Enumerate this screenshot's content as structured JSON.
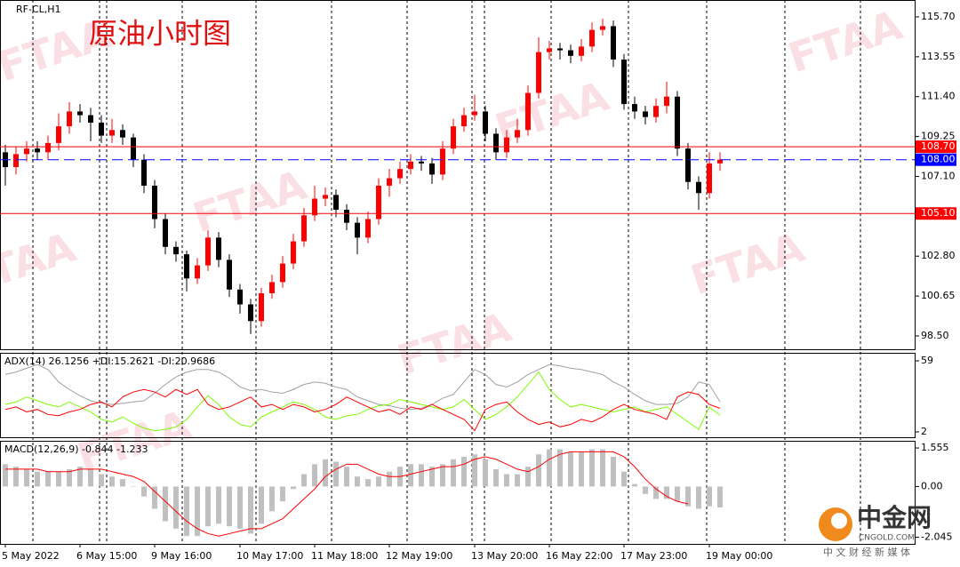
{
  "chart_data": [
    {
      "type": "candlestick",
      "title": "RF-CL,H1",
      "annotation": "原油小时图",
      "categories": [
        "5 May 2022",
        null,
        null,
        null,
        null,
        null,
        null,
        "6 May 15:00",
        null,
        null,
        null,
        null,
        null,
        null,
        "9 May 16:00",
        null,
        null,
        null,
        null,
        null,
        null,
        null,
        "10 May 17:00",
        null,
        null,
        null,
        null,
        null,
        null,
        "11 May 18:00",
        null,
        null,
        null,
        null,
        null,
        null,
        "12 May 19:00",
        null,
        null,
        null,
        null,
        null,
        null,
        null,
        "13 May 20:00",
        null,
        null,
        null,
        null,
        null,
        null,
        "16 May 22:00",
        null,
        null,
        null,
        null,
        null,
        null,
        "17 May 23:00",
        null,
        null,
        null,
        null,
        null,
        null,
        null,
        "19 May 00:00",
        null
      ],
      "open": [
        108.4,
        107.6,
        108.3,
        108.6,
        108.4,
        108.9,
        109.8,
        110.6,
        110.4,
        110.0,
        109.3,
        109.6,
        109.2,
        108.0,
        106.6,
        104.8,
        103.3,
        102.9,
        101.6,
        102.3,
        103.8,
        102.6,
        101.0,
        100.2,
        99.3,
        100.8,
        101.4,
        102.4,
        103.6,
        105.0,
        105.9,
        106.1,
        105.3,
        104.6,
        103.8,
        104.8,
        106.6,
        107.0,
        107.5,
        107.9,
        107.8,
        107.2,
        108.6,
        109.8,
        110.4,
        110.6,
        109.4,
        108.4,
        109.2,
        109.6,
        111.6,
        113.8,
        114.0,
        113.9,
        113.6,
        114.1,
        115.0,
        115.2,
        113.4,
        111.0,
        110.6,
        110.3,
        110.9,
        111.4,
        108.6,
        106.8,
        106.2,
        107.8
      ],
      "high": [
        108.8,
        108.7,
        109.0,
        109.0,
        109.3,
        110.5,
        111.1,
        111.0,
        110.8,
        110.4,
        110.2,
        109.9,
        109.4,
        108.3,
        106.9,
        105.1,
        103.6,
        103.1,
        102.7,
        104.2,
        104.1,
        102.9,
        101.3,
        100.5,
        101.1,
        101.8,
        102.8,
        104.0,
        105.4,
        106.6,
        106.5,
        106.4,
        105.6,
        104.9,
        105.2,
        107.0,
        107.5,
        107.9,
        108.3,
        108.2,
        108.1,
        109.0,
        110.2,
        110.8,
        111.5,
        110.9,
        109.7,
        109.6,
        110.2,
        112.0,
        114.6,
        114.4,
        114.3,
        114.2,
        114.5,
        115.4,
        115.6,
        115.5,
        113.7,
        111.4,
        110.9,
        111.3,
        112.2,
        111.7,
        108.9,
        107.1,
        108.4,
        108.4
      ],
      "low": [
        106.6,
        107.2,
        107.9,
        108.0,
        108.0,
        108.5,
        109.4,
        110.0,
        109.0,
        108.9,
        108.9,
        108.8,
        107.6,
        106.2,
        104.3,
        102.9,
        102.5,
        100.9,
        101.3,
        102.0,
        102.2,
        100.6,
        99.7,
        98.6,
        99.0,
        100.5,
        101.1,
        102.1,
        103.3,
        104.7,
        105.5,
        104.9,
        104.2,
        102.9,
        103.5,
        104.5,
        106.0,
        106.7,
        107.2,
        107.4,
        106.7,
        106.9,
        108.3,
        109.5,
        110.1,
        109.0,
        108.0,
        108.1,
        108.9,
        109.3,
        111.3,
        113.4,
        113.4,
        113.2,
        113.3,
        113.8,
        114.7,
        113.0,
        110.7,
        110.2,
        109.9,
        110.0,
        110.5,
        108.2,
        106.4,
        105.3,
        105.9,
        107.4
      ],
      "close": [
        107.6,
        108.3,
        108.6,
        108.4,
        108.9,
        109.8,
        110.6,
        110.4,
        110.0,
        109.3,
        109.6,
        109.2,
        108.0,
        106.6,
        104.8,
        103.3,
        102.9,
        101.6,
        102.3,
        103.8,
        102.6,
        101.0,
        100.2,
        99.3,
        100.8,
        101.4,
        102.4,
        103.6,
        105.0,
        105.9,
        106.1,
        105.3,
        104.6,
        103.8,
        104.8,
        106.6,
        107.0,
        107.5,
        107.9,
        107.8,
        107.2,
        108.6,
        109.8,
        110.4,
        110.6,
        109.4,
        108.4,
        109.2,
        109.6,
        111.6,
        113.8,
        114.0,
        113.9,
        113.6,
        114.1,
        115.0,
        115.2,
        113.4,
        111.0,
        110.6,
        110.3,
        110.9,
        111.4,
        108.6,
        106.8,
        106.2,
        107.8,
        108.0
      ],
      "up_color": "#ff0000",
      "down_color": "#000000",
      "ylim": [
        97.78,
        116.61
      ],
      "yticks": [
        {
          "value": 115.7,
          "label": "115.70"
        },
        {
          "value": 113.55,
          "label": "113.55"
        },
        {
          "value": 111.4,
          "label": "111.40"
        },
        {
          "value": 109.25,
          "label": "109.25"
        },
        {
          "value": 107.1,
          "label": "107.10"
        },
        {
          "value": 102.8,
          "label": "102.80"
        },
        {
          "value": 100.65,
          "label": "100.65"
        },
        {
          "value": 98.5,
          "label": "98.50"
        }
      ],
      "levels": [
        {
          "value": 108.7,
          "label": "108.70",
          "color": "#ff0000",
          "dashed": false
        },
        {
          "value": 108.0,
          "label": "108.00",
          "color": "#0000ff",
          "dashed": true
        },
        {
          "value": 105.1,
          "label": "105.10",
          "color": "#ff0000",
          "dashed": false
        }
      ]
    },
    {
      "type": "line",
      "title": "ADX(14) 26.1256 +DI:15.2621 -DI:20.9686",
      "series": [
        {
          "color": "#a0a0a0",
          "values": [
            48,
            50,
            53,
            56,
            52,
            42,
            36,
            31,
            27,
            25,
            24,
            25,
            26,
            27,
            33,
            40,
            46,
            50,
            52,
            52,
            50,
            45,
            38,
            35,
            36,
            34,
            33,
            36,
            40,
            42,
            41,
            38,
            36,
            30,
            27,
            24,
            23,
            21,
            20,
            21,
            24,
            29,
            32,
            42,
            52,
            48,
            40,
            38,
            42,
            48,
            52,
            56,
            55,
            53,
            52,
            50,
            48,
            42,
            38,
            32,
            27,
            24,
            24,
            25,
            30,
            42,
            40,
            26.1256
          ]
        },
        {
          "color": "#7cfc00",
          "values": [
            24,
            26,
            30,
            27,
            24,
            22,
            26,
            22,
            18,
            12,
            10,
            14,
            9,
            5,
            3,
            4,
            6,
            12,
            22,
            31,
            24,
            14,
            8,
            6,
            14,
            18,
            22,
            26,
            24,
            20,
            14,
            12,
            15,
            16,
            20,
            23,
            24,
            28,
            26,
            24,
            22,
            20,
            22,
            28,
            20,
            12,
            16,
            22,
            30,
            40,
            50,
            36,
            28,
            22,
            24,
            22,
            20,
            18,
            20,
            22,
            18,
            20,
            22,
            16,
            10,
            4,
            22,
            15.2621
          ]
        },
        {
          "color": "#ff0000",
          "values": [
            20,
            22,
            18,
            20,
            16,
            15,
            18,
            20,
            24,
            26,
            22,
            30,
            34,
            36,
            34,
            30,
            36,
            32,
            36,
            24,
            20,
            22,
            26,
            30,
            22,
            24,
            20,
            24,
            22,
            18,
            20,
            24,
            30,
            26,
            22,
            18,
            20,
            16,
            22,
            20,
            24,
            20,
            16,
            12,
            3,
            20,
            24,
            26,
            18,
            12,
            8,
            10,
            6,
            8,
            12,
            10,
            14,
            20,
            24,
            20,
            18,
            16,
            12,
            30,
            34,
            32,
            24,
            20.9686
          ]
        }
      ],
      "ylim": [
        -2.3,
        65.4
      ],
      "yticks": [
        59,
        2
      ]
    },
    {
      "type": "macd",
      "title": "MACD(12,26,9) -0.844 -1.233",
      "series": [
        {
          "kind": "bar",
          "color": "#c0c0c0",
          "values": [
            0.9,
            0.8,
            0.7,
            0.6,
            0.6,
            0.6,
            0.7,
            0.8,
            0.7,
            0.5,
            0.4,
            0.3,
            0.0,
            -0.4,
            -0.9,
            -1.4,
            -1.7,
            -2.0,
            -2.0,
            -1.6,
            -1.5,
            -1.6,
            -1.7,
            -1.9,
            -1.5,
            -1.0,
            -0.6,
            -0.1,
            0.5,
            0.9,
            1.1,
            1.0,
            0.8,
            0.4,
            0.3,
            0.4,
            0.6,
            0.8,
            0.9,
            0.9,
            0.8,
            0.9,
            1.1,
            1.2,
            1.3,
            1.1,
            0.7,
            0.5,
            0.5,
            0.8,
            1.3,
            1.5,
            1.5,
            1.4,
            1.4,
            1.5,
            1.5,
            1.2,
            0.6,
            0.1,
            -0.3,
            -0.5,
            -0.5,
            -0.6,
            -0.8,
            -0.9,
            -0.8,
            -0.844
          ]
        },
        {
          "kind": "line",
          "color": "#ff0000",
          "values": [
            0.7,
            0.7,
            0.7,
            0.7,
            0.6,
            0.6,
            0.6,
            0.7,
            0.7,
            0.7,
            0.6,
            0.5,
            0.4,
            0.2,
            -0.2,
            -0.6,
            -1.0,
            -1.4,
            -1.7,
            -1.9,
            -2.0,
            -1.9,
            -1.8,
            -1.7,
            -1.7,
            -1.5,
            -1.3,
            -0.9,
            -0.5,
            -0.1,
            0.4,
            0.7,
            0.9,
            0.9,
            0.7,
            0.5,
            0.4,
            0.4,
            0.5,
            0.6,
            0.7,
            0.8,
            0.8,
            0.9,
            1.1,
            1.2,
            1.1,
            0.9,
            0.7,
            0.6,
            0.8,
            1.1,
            1.3,
            1.4,
            1.4,
            1.4,
            1.4,
            1.4,
            1.2,
            0.8,
            0.3,
            -0.1,
            -0.4,
            -0.6,
            -0.7,
            null,
            null,
            null
          ]
        }
      ],
      "ylim": [
        -2.315,
        1.844
      ],
      "yticks": [
        1.555,
        {
          "value": 0,
          "label": "0.00"
        },
        -2.045
      ]
    }
  ],
  "watermark": "FTAA",
  "logo": {
    "name": "中金网",
    "site": "CNGOLD.COM",
    "slogan": "中 文 财 经 新 媒 体"
  }
}
